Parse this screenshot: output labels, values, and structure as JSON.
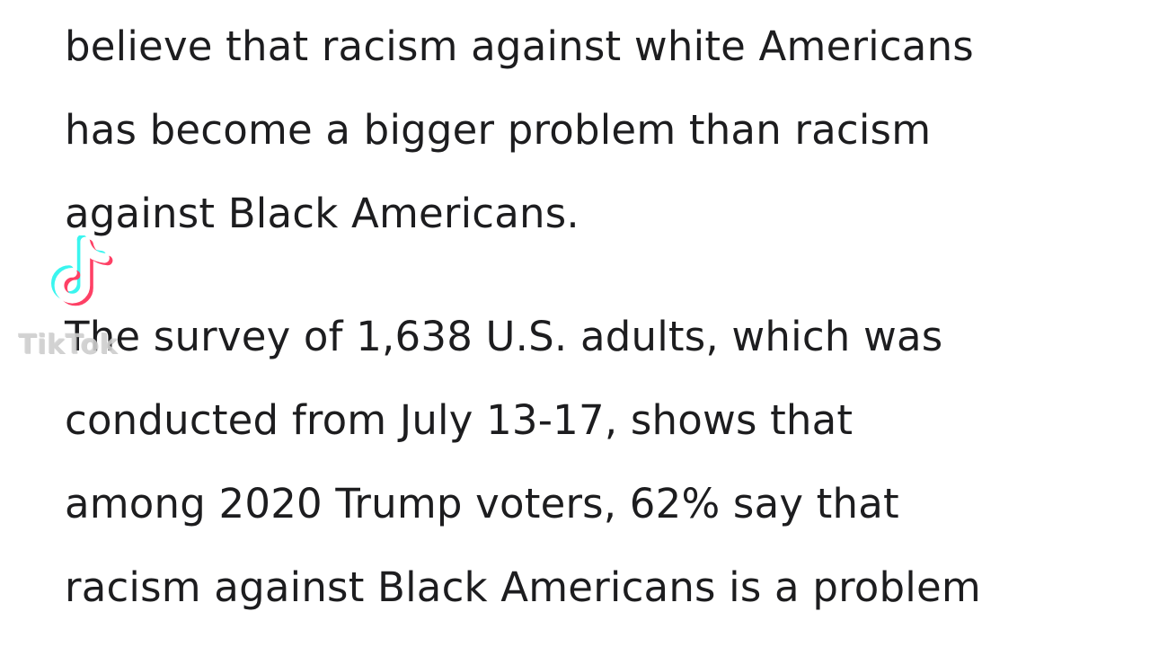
{
  "article": {
    "paragraph1": [
      "believe that racism against white Americans",
      "has become a bigger problem than racism",
      "against Black Americans."
    ],
    "paragraph2": [
      "The survey of 1,638 U.S. adults, which was",
      "conducted from July 13-17, shows that",
      "among 2020 Trump voters, 62% say that",
      "racism against Black Americans is a problem"
    ]
  },
  "watermark": {
    "icon": "tiktok-icon",
    "text": "TikTok"
  }
}
